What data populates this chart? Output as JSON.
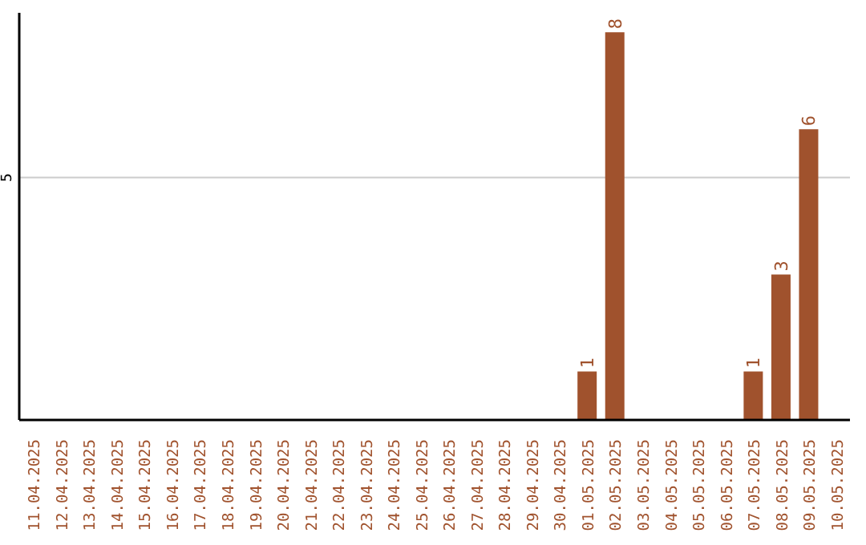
{
  "chart_data": {
    "type": "bar",
    "categories": [
      "11.04.2025",
      "12.04.2025",
      "13.04.2025",
      "14.04.2025",
      "15.04.2025",
      "16.04.2025",
      "17.04.2025",
      "18.04.2025",
      "19.04.2025",
      "20.04.2025",
      "21.04.2025",
      "22.04.2025",
      "23.04.2025",
      "24.04.2025",
      "25.04.2025",
      "26.04.2025",
      "27.04.2025",
      "28.04.2025",
      "29.04.2025",
      "30.04.2025",
      "01.05.2025",
      "02.05.2025",
      "03.05.2025",
      "04.05.2025",
      "05.05.2025",
      "06.05.2025",
      "07.05.2025",
      "08.05.2025",
      "09.05.2025",
      "10.05.2025"
    ],
    "values": [
      null,
      null,
      null,
      null,
      null,
      null,
      null,
      null,
      null,
      null,
      null,
      null,
      null,
      null,
      null,
      null,
      null,
      null,
      null,
      null,
      1,
      8,
      null,
      null,
      null,
      null,
      1,
      3,
      6,
      null
    ],
    "color": "#a0522d",
    "ylim": [
      0,
      8.4
    ],
    "yticks": [
      5
    ],
    "grid": "y",
    "data_labels": true
  }
}
